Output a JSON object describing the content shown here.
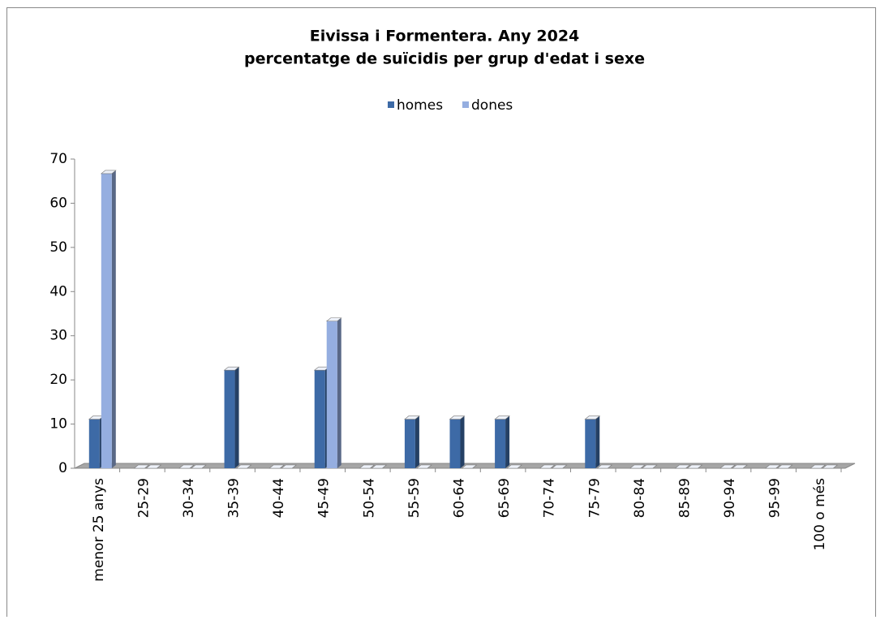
{
  "chart_data": {
    "type": "bar",
    "title": [
      "Eivissa i Formentera. Any 2024",
      "percentatge de suïcidis per grup d'edat i sexe"
    ],
    "categories": [
      "menor 25 anys",
      "25-29",
      "30-34",
      "35-39",
      "40-44",
      "45-49",
      "50-54",
      "55-59",
      "60-64",
      "65-69",
      "70-74",
      "75-79",
      "80-84",
      "85-89",
      "90-94",
      "95-99",
      "100 o més"
    ],
    "series": [
      {
        "name": "homes",
        "color": "#3d6aa6",
        "values": [
          11.1,
          0,
          0,
          22.2,
          0,
          22.2,
          0,
          11.1,
          11.1,
          11.1,
          0,
          11.1,
          0,
          0,
          0,
          0,
          0
        ]
      },
      {
        "name": "dones",
        "color": "#95aee0",
        "values": [
          66.7,
          0,
          0,
          0,
          0,
          33.3,
          0,
          0,
          0,
          0,
          0,
          0,
          0,
          0,
          0,
          0,
          0
        ]
      }
    ],
    "ylim": [
      0,
      70
    ],
    "yticks": [
      0,
      10,
      20,
      30,
      40,
      50,
      60,
      70
    ],
    "legend": "top"
  }
}
